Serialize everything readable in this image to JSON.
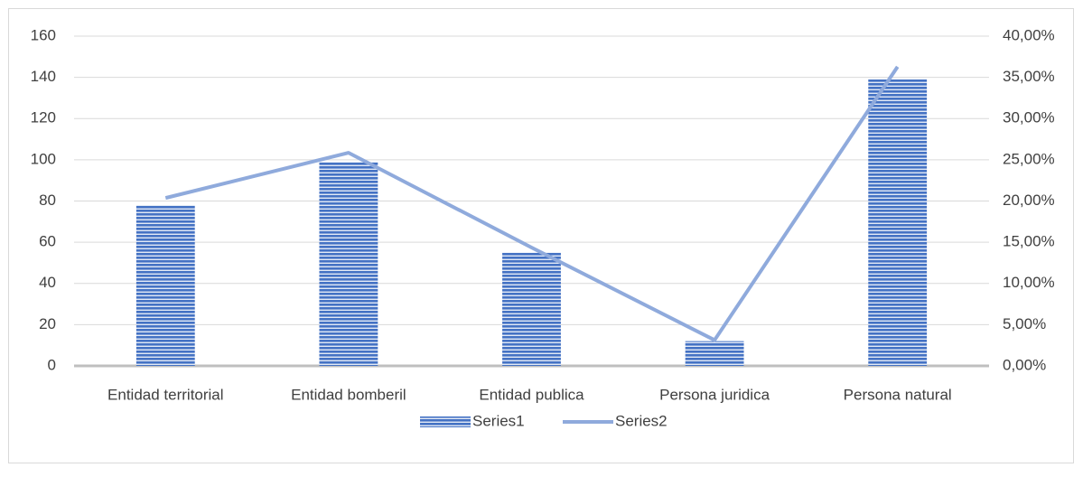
{
  "chart_data": {
    "type": "bar-line",
    "categories": [
      "Entidad territorial",
      "Entidad bomberil",
      "Entidad publica",
      "Persona juridica",
      "Persona natural"
    ],
    "series": [
      {
        "name": "Series1",
        "type": "bar",
        "color": "#4472c4",
        "values": [
          78,
          99,
          55,
          12,
          139
        ]
      },
      {
        "name": "Series2",
        "type": "line",
        "axis": "y2",
        "color": "#8faadc",
        "values": [
          20.37,
          25.85,
          14.36,
          3.13,
          36.29
        ]
      }
    ],
    "ylim": [
      0,
      160
    ],
    "yticks": [
      0,
      20,
      40,
      60,
      80,
      100,
      120,
      140,
      160
    ],
    "y2lim": [
      0,
      40
    ],
    "y2ticks": [
      {
        "value": 0,
        "label": "0,00%"
      },
      {
        "value": 5,
        "label": "5,00%"
      },
      {
        "value": 10,
        "label": "10,00%"
      },
      {
        "value": 15,
        "label": "15,00%"
      },
      {
        "value": 20,
        "label": "20,00%"
      },
      {
        "value": 25,
        "label": "25,00%"
      },
      {
        "value": 30,
        "label": "30,00%"
      },
      {
        "value": 35,
        "label": "35,00%"
      },
      {
        "value": 40,
        "label": "40,00%"
      }
    ],
    "grid": true,
    "legend": "bottom"
  }
}
